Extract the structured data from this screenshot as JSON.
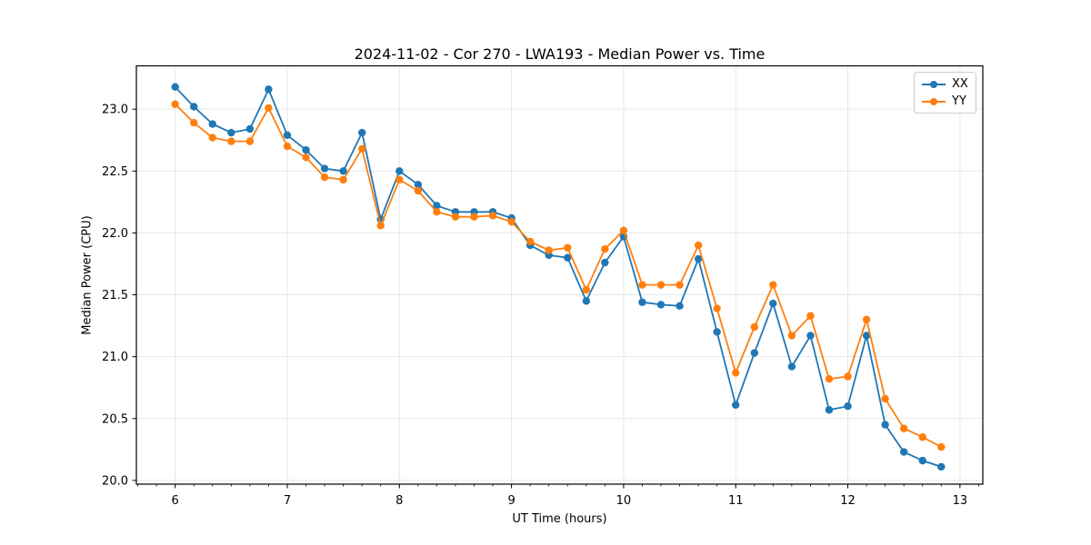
{
  "figure": {
    "title": "2024-11-02 - Cor 270 - LWA193 - Median Power vs. Time",
    "xlabel": "UT Time (hours)",
    "ylabel": "Median Power (CPU)"
  },
  "colors": {
    "series_xx": "#1f77b4",
    "series_yy": "#ff7f0e",
    "grid": "#e7e7e7",
    "spine": "#000000",
    "legend_border": "#cccccc"
  },
  "legend": {
    "items": [
      {
        "label": "XX",
        "color": "#1f77b4"
      },
      {
        "label": "YY",
        "color": "#ff7f0e"
      }
    ]
  },
  "chart_data": {
    "type": "line",
    "title": "2024-11-02 - Cor 270 - LWA193 - Median Power vs. Time",
    "xlabel": "UT Time (hours)",
    "ylabel": "Median Power (CPU)",
    "xlim": [
      5.654,
      13.204
    ],
    "ylim": [
      19.97,
      23.35
    ],
    "xticks": [
      6,
      7,
      8,
      9,
      10,
      11,
      12,
      13
    ],
    "xtick_labels": [
      "6",
      "7",
      "8",
      "9",
      "10",
      "11",
      "12",
      "13"
    ],
    "yticks": [
      20.0,
      20.5,
      21.0,
      21.5,
      22.0,
      22.5,
      23.0
    ],
    "ytick_labels": [
      "20.0",
      "20.5",
      "21.0",
      "21.5",
      "22.0",
      "22.5",
      "23.0"
    ],
    "x_minor_tick_step": 0.166667,
    "grid": true,
    "legend_position": "upper right",
    "marker": "circle",
    "x": [
      6.0,
      6.167,
      6.333,
      6.5,
      6.667,
      6.833,
      7.0,
      7.167,
      7.333,
      7.5,
      7.667,
      7.833,
      8.0,
      8.167,
      8.333,
      8.5,
      8.667,
      8.833,
      9.0,
      9.167,
      9.333,
      9.5,
      9.667,
      9.833,
      10.0,
      10.167,
      10.333,
      10.5,
      10.667,
      10.833,
      11.0,
      11.167,
      11.333,
      11.5,
      11.667,
      11.833,
      12.0,
      12.167,
      12.333,
      12.5,
      12.667,
      12.833
    ],
    "series": [
      {
        "name": "XX",
        "color": "#1f77b4",
        "values": [
          23.18,
          23.02,
          22.88,
          22.81,
          22.84,
          23.16,
          22.79,
          22.67,
          22.52,
          22.5,
          22.81,
          22.11,
          22.5,
          22.39,
          22.22,
          22.17,
          22.17,
          22.17,
          22.12,
          21.9,
          21.82,
          21.8,
          21.45,
          21.76,
          21.97,
          21.44,
          21.42,
          21.41,
          21.79,
          21.2,
          20.61,
          21.03,
          21.43,
          20.92,
          21.17,
          20.57,
          20.6,
          21.17,
          20.45,
          20.23,
          20.16,
          20.11
        ]
      },
      {
        "name": "YY",
        "color": "#ff7f0e",
        "values": [
          23.04,
          22.89,
          22.77,
          22.74,
          22.74,
          23.01,
          22.7,
          22.61,
          22.45,
          22.43,
          22.68,
          22.06,
          22.43,
          22.34,
          22.17,
          22.13,
          22.13,
          22.14,
          22.09,
          21.93,
          21.86,
          21.88,
          21.54,
          21.87,
          22.02,
          21.58,
          21.58,
          21.58,
          21.9,
          21.39,
          20.87,
          21.24,
          21.58,
          21.17,
          21.33,
          20.82,
          20.84,
          21.3,
          20.66,
          20.42,
          20.35,
          20.27
        ]
      }
    ]
  }
}
